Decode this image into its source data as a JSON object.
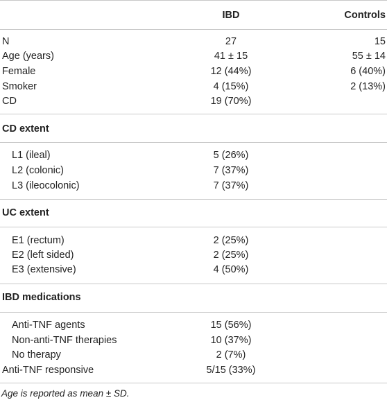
{
  "table": {
    "headers": {
      "col1": "",
      "ibd": "IBD",
      "controls": "Controls"
    },
    "general": [
      {
        "label": "N",
        "ibd": "27",
        "controls": "15"
      },
      {
        "label": "Age (years)",
        "ibd": "41 ± 15",
        "controls": "55 ± 14"
      },
      {
        "label": "Female",
        "ibd": "12 (44%)",
        "controls": "6 (40%)"
      },
      {
        "label": "Smoker",
        "ibd": "4 (15%)",
        "controls": "2 (13%)"
      },
      {
        "label": "CD",
        "ibd": "19 (70%)",
        "controls": ""
      }
    ],
    "cd_extent": {
      "title": "CD extent",
      "rows": [
        {
          "label": "L1 (ileal)",
          "ibd": "5 (26%)"
        },
        {
          "label": "L2 (colonic)",
          "ibd": "7 (37%)"
        },
        {
          "label": "L3 (ileocolonic)",
          "ibd": "7 (37%)"
        }
      ]
    },
    "uc_extent": {
      "title": "UC extent",
      "rows": [
        {
          "label": "E1 (rectum)",
          "ibd": "2 (25%)"
        },
        {
          "label": "E2 (left sided)",
          "ibd": "2 (25%)"
        },
        {
          "label": "E3 (extensive)",
          "ibd": "4 (50%)"
        }
      ]
    },
    "medications": {
      "title": "IBD medications",
      "rows": [
        {
          "label": "Anti-TNF agents",
          "ibd": "15 (56%)"
        },
        {
          "label": "Non-anti-TNF therapies",
          "ibd": "10 (37%)"
        },
        {
          "label": "No therapy",
          "ibd": "2 (7%)"
        }
      ]
    },
    "responsive": {
      "label": "Anti-TNF responsive",
      "ibd": "5/15 (33%)"
    }
  },
  "footnote": "Age is reported as mean ± SD."
}
